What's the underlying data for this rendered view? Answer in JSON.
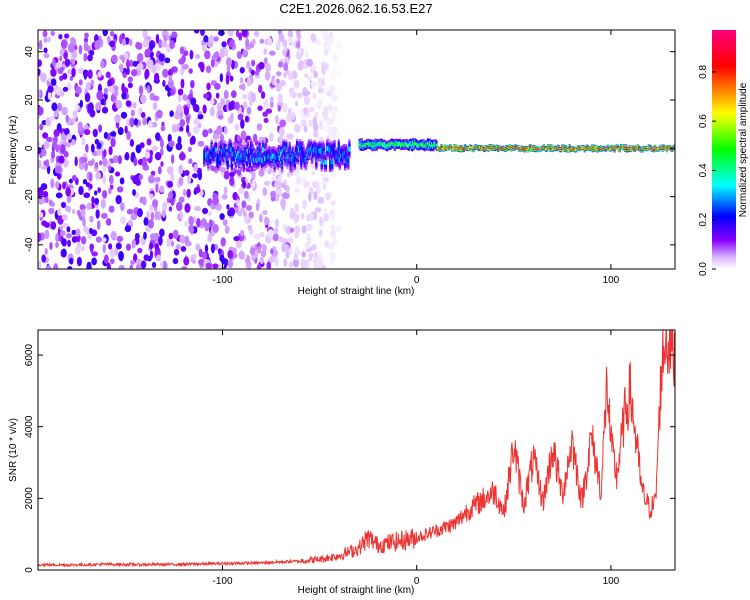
{
  "title": "C2E1.2026.062.16.53.E27",
  "chart_data": [
    {
      "type": "heatmap",
      "xlabel": "Height of straight line (km)",
      "ylabel": "Frequency (Hz)",
      "xlim": [
        -195,
        133
      ],
      "ylim": [
        -50,
        49
      ],
      "xticks": [
        -100,
        0,
        100
      ],
      "yticks": [
        -40,
        -20,
        0,
        20,
        40
      ],
      "colorbar": {
        "label": "Normalized spectral amplitude",
        "range": [
          0,
          0.97
        ],
        "ticks": [
          0.0,
          0.2,
          0.4,
          0.6,
          0.8
        ],
        "colormap": [
          "#ffffff",
          "#8800ff",
          "#0000ff",
          "#00ffff",
          "#00ff00",
          "#ffff00",
          "#ff0000",
          "#ff0080"
        ]
      },
      "regions": [
        {
          "x": [
            -195,
            -60
          ],
          "freq_range": [
            -50,
            49
          ],
          "amplitude": 0.12,
          "description": "broadband noise"
        },
        {
          "x": [
            -110,
            -35
          ],
          "freq_center": -3,
          "freq_width": 8,
          "amplitude": 0.3
        },
        {
          "x": [
            -30,
            10
          ],
          "freq_center": 1.5,
          "freq_width": 4,
          "amplitude": 0.5
        },
        {
          "x": [
            10,
            133
          ],
          "freq_center": 0,
          "freq_width": 2,
          "amplitude": 0.9
        }
      ]
    },
    {
      "type": "line",
      "xlabel": "Height of straight line (km)",
      "ylabel": "SNR (10 * v/v)",
      "xlim": [
        -195,
        133
      ],
      "ylim": [
        0,
        6700
      ],
      "xticks": [
        -100,
        0,
        100
      ],
      "yticks": [
        0,
        2000,
        4000,
        6000
      ],
      "series": [
        {
          "color": "#ee3333",
          "x": [
            -195,
            -180,
            -160,
            -140,
            -120,
            -100,
            -80,
            -60,
            -50,
            -40,
            -30,
            -25,
            -20,
            -10,
            0,
            10,
            15,
            20,
            25,
            30,
            35,
            40,
            45,
            50,
            55,
            60,
            65,
            70,
            75,
            80,
            85,
            90,
            95,
            98,
            100,
            103,
            107,
            110,
            113,
            116,
            120,
            123,
            126,
            128,
            130,
            133
          ],
          "y": [
            150,
            140,
            160,
            150,
            160,
            180,
            200,
            250,
            300,
            400,
            600,
            900,
            700,
            800,
            900,
            1100,
            1200,
            1300,
            1600,
            1800,
            2000,
            2200,
            1600,
            3500,
            1800,
            3100,
            1900,
            3400,
            2100,
            3600,
            1900,
            3700,
            2200,
            5300,
            3500,
            2600,
            4300,
            5000,
            3600,
            2200,
            1700,
            1900,
            5600,
            6500,
            6400,
            5800
          ]
        }
      ]
    }
  ]
}
